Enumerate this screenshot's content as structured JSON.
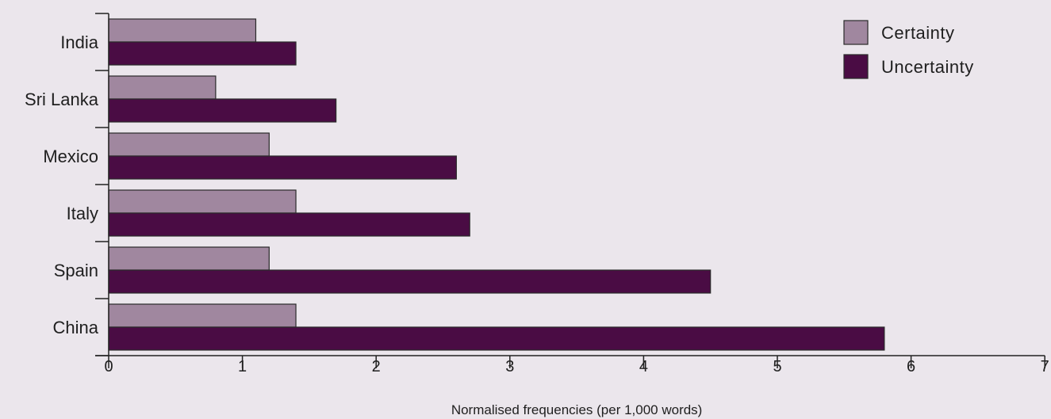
{
  "chart_data": {
    "type": "bar",
    "orientation": "horizontal",
    "categories": [
      "India",
      "Sri Lanka",
      "Mexico",
      "Italy",
      "Spain",
      "China"
    ],
    "series": [
      {
        "name": "Certainty",
        "values": [
          1.1,
          0.8,
          1.2,
          1.4,
          1.2,
          1.4
        ],
        "color": "#a0879f"
      },
      {
        "name": "Uncertainty",
        "values": [
          1.4,
          1.7,
          2.6,
          2.7,
          4.5,
          5.8
        ],
        "color": "#4a0c44"
      }
    ],
    "xlabel": "Normalised frequencies (per 1,000 words)",
    "ylabel": "",
    "xlim": [
      0,
      7
    ],
    "xticks": [
      "0",
      "1",
      "2",
      "3",
      "4",
      "5",
      "6",
      "7"
    ],
    "grid": false,
    "legend_position": "top-right",
    "background_color": "#ebe6ec"
  }
}
